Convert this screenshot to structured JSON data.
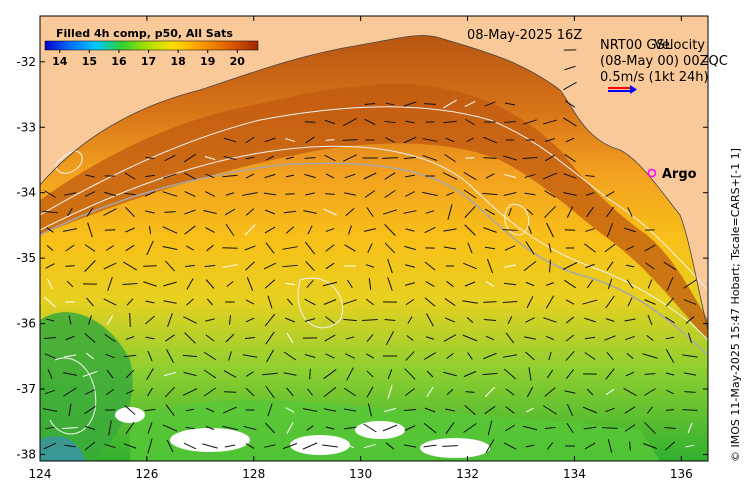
{
  "map": {
    "timestamp": "08-May-2025 16Z",
    "legend_title": "Filled 4h comp, p50, All Sats",
    "colorbar_ticks": [
      "14",
      "15",
      "16",
      "17",
      "18",
      "19",
      "20"
    ],
    "velocity_label_1": "NRT00 GSL",
    "velocity_label_2": "Velocity",
    "velocity_label_3": "(08-May 00) 00ZQC",
    "velocity_scale": "0.5m/s (1kt 24h)",
    "argo_label": "Argo",
    "credit": "© IMOS 11-May-2025 15:47 Hobart; Tscale=CARS+[-1 1]",
    "colors": {
      "land": "#fac999",
      "warm": "#c25d10",
      "cool": "#2fae2f",
      "argo": "#ff00ff"
    }
  },
  "chart_data": {
    "type": "heatmap",
    "title": "Filled 4h comp, p50, All Sats",
    "colorbar": {
      "min": 13.5,
      "max": 20.7,
      "ticks": [
        14,
        15,
        16,
        17,
        18,
        19,
        20
      ]
    },
    "xlim": [
      124,
      136.5
    ],
    "ylim": [
      -38.1,
      -31.3
    ],
    "x_ticks": [
      124,
      126,
      128,
      130,
      132,
      134,
      136
    ],
    "y_ticks": [
      -32,
      -33,
      -34,
      -35,
      -36,
      -37,
      -38
    ],
    "argo_float": {
      "lon": 135.45,
      "lat": -33.7
    }
  }
}
